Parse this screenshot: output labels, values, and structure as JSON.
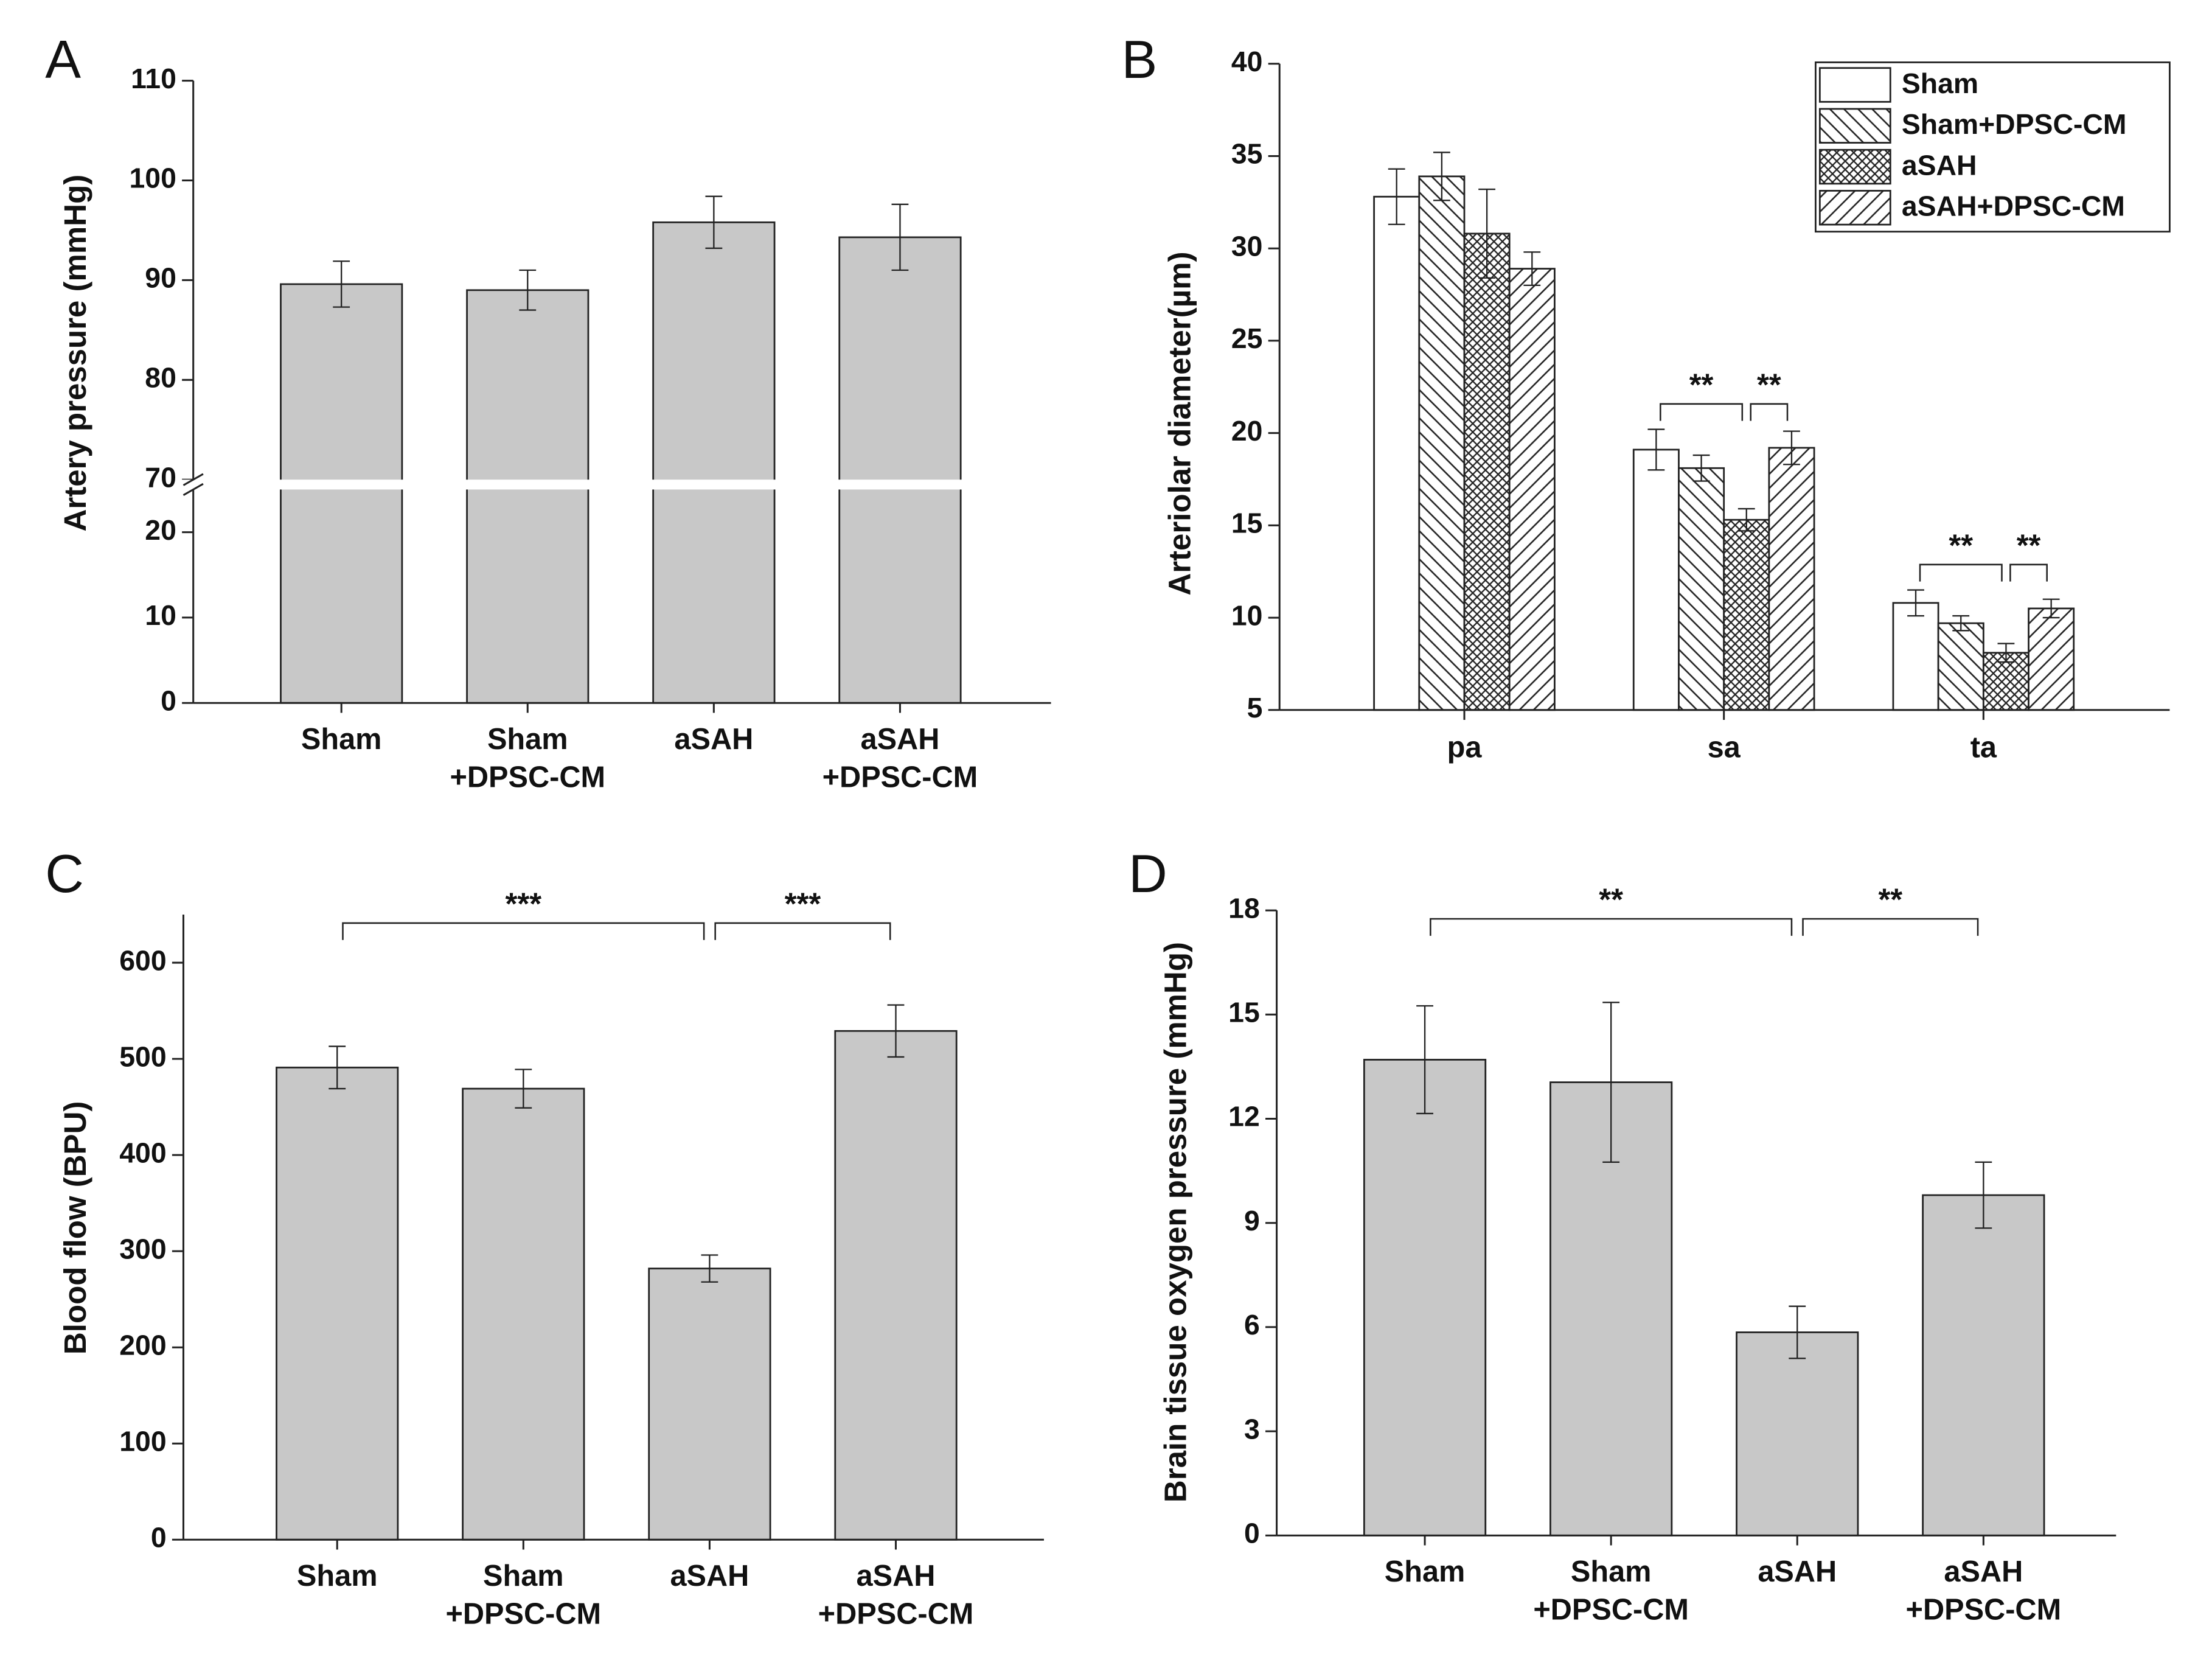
{
  "chart_data": [
    {
      "type": "bar",
      "panel": "A",
      "ylabel": "Artery pressure (mmHg)",
      "categories": [
        [
          "Sham"
        ],
        [
          "Sham",
          "+DPSC-CM"
        ],
        [
          "aSAH"
        ],
        [
          "aSAH",
          "+DPSC-CM"
        ]
      ],
      "values": [
        89.6,
        89.0,
        95.8,
        94.3
      ],
      "errors": [
        2.3,
        2.0,
        2.6,
        3.3
      ],
      "color": "#c8c8c8",
      "ylim": [
        0,
        110
      ],
      "ybreak": [
        25,
        70
      ],
      "yticks": [
        0,
        10,
        20,
        70,
        80,
        90,
        100,
        110
      ]
    },
    {
      "type": "grouped_bar",
      "panel": "B",
      "ylabel": "Arteriolar diameter(µm)",
      "categories": [
        "pa",
        "sa",
        "ta"
      ],
      "series": [
        {
          "name": "Sham",
          "color": "#ffffff",
          "pattern": "none",
          "values": [
            32.8,
            19.1,
            10.8
          ],
          "errors": [
            1.5,
            1.1,
            0.7
          ]
        },
        {
          "name": "Sham+DPSC-CM",
          "color": "#ffffff",
          "pattern": "backslash",
          "values": [
            33.9,
            18.1,
            9.7
          ],
          "errors": [
            1.3,
            0.7,
            0.4
          ]
        },
        {
          "name": "aSAH",
          "color": "#ffffff",
          "pattern": "crosshatch",
          "values": [
            30.8,
            15.3,
            8.1
          ],
          "errors": [
            2.4,
            0.6,
            0.5
          ]
        },
        {
          "name": "aSAH+DPSC-CM",
          "color": "#ffffff",
          "pattern": "slash",
          "values": [
            28.9,
            19.2,
            10.5
          ],
          "errors": [
            0.9,
            0.9,
            0.5
          ]
        }
      ],
      "ylim": [
        5,
        40
      ],
      "yticks": [
        5,
        10,
        15,
        20,
        25,
        30,
        35,
        40
      ],
      "legend": "upper right",
      "annotations": [
        {
          "text": "**",
          "category": 1,
          "from": 0,
          "to": 2
        },
        {
          "text": "**",
          "category": 1,
          "from": 2,
          "to": 3
        },
        {
          "text": "**",
          "category": 2,
          "from": 0,
          "to": 2
        },
        {
          "text": "**",
          "category": 2,
          "from": 2,
          "to": 3
        }
      ]
    },
    {
      "type": "bar",
      "panel": "C",
      "ylabel": "Blood flow (BPU)",
      "categories": [
        [
          "Sham"
        ],
        [
          "Sham",
          "+DPSC-CM"
        ],
        [
          "aSAH"
        ],
        [
          "aSAH",
          "+DPSC-CM"
        ]
      ],
      "values": [
        491,
        469,
        282,
        529
      ],
      "errors": [
        22,
        20,
        14,
        27
      ],
      "color": "#c8c8c8",
      "ylim": [
        0,
        650
      ],
      "yticks": [
        0,
        100,
        200,
        300,
        400,
        500,
        600
      ],
      "annotations": [
        {
          "text": "***",
          "from": 0,
          "to": 2
        },
        {
          "text": "***",
          "from": 2,
          "to": 3
        }
      ]
    },
    {
      "type": "bar",
      "panel": "D",
      "ylabel": "Brain tissue oxygen pressure (mmHg)",
      "categories": [
        [
          "Sham"
        ],
        [
          "Sham",
          "+DPSC-CM"
        ],
        [
          "aSAH"
        ],
        [
          "aSAH",
          "+DPSC-CM"
        ]
      ],
      "values": [
        13.7,
        13.05,
        5.85,
        9.8
      ],
      "errors": [
        1.55,
        2.3,
        0.75,
        0.95
      ],
      "color": "#c8c8c8",
      "ylim": [
        0,
        18
      ],
      "yticks": [
        0,
        3,
        6,
        9,
        12,
        15,
        18
      ],
      "annotations": [
        {
          "text": "**",
          "from": 0,
          "to": 2
        },
        {
          "text": "**",
          "from": 2,
          "to": 3
        }
      ]
    }
  ]
}
